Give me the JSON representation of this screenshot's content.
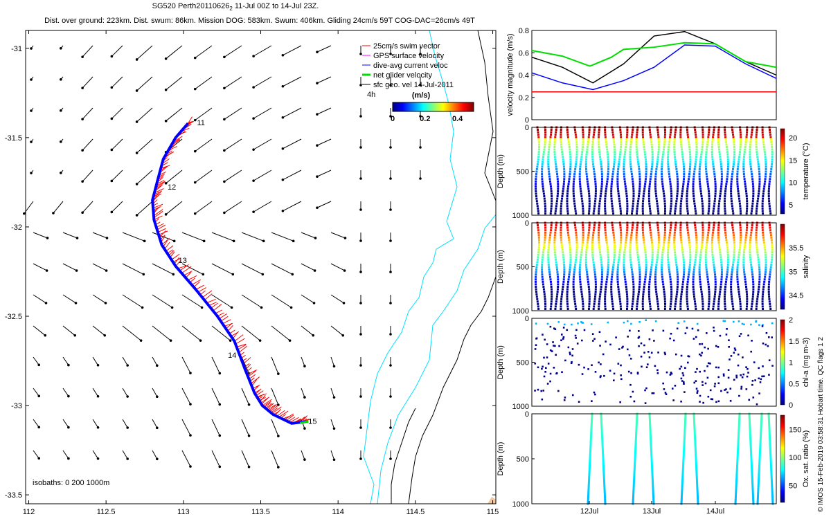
{
  "title": "SG520 Perth20110626",
  "title_sub": "2",
  "title_dates": " 11-Jul 00Z to 14-Jul 23Z.",
  "subtitle": "Dist. over ground: 223km. Dist. swum: 86km. Mission DOG: 583km. Swum: 406km. Gliding 24cm/s 59T COG-DAC=26cm/s 49T",
  "credit": "© IMOS 15-Feb-2019 03:58:31 Hobart time. QC flags 1  2",
  "chart_data": [
    {
      "type": "scatter",
      "name": "map",
      "x_ticks": [
        "112",
        "112.5",
        "113",
        "113.5",
        "114",
        "114.5",
        "115"
      ],
      "y_ticks": [
        "-31",
        "-31.5",
        "-32",
        "-32.5",
        "-33",
        "-33.5"
      ],
      "xlim": [
        111.98,
        115.02
      ],
      "ylim": [
        -33.55,
        -30.9
      ],
      "legend": {
        "placement": "top-right",
        "items": [
          {
            "label": "25cm/s swim vector",
            "color": "#ff0000"
          },
          {
            "label": "GPS surface velocity",
            "color": "#ff00ff"
          },
          {
            "label": "dive-avg current veloc",
            "color": "#0000ff"
          },
          {
            "label": "net glider velocity",
            "color": "#00dd00"
          },
          {
            "label": "sfc geo. vel 14-Jul-2011",
            "color": "#000000"
          }
        ]
      },
      "scale_label": "4h",
      "colorbar": {
        "label": "(m/s)",
        "ticks": [
          "0",
          "0.2",
          "0.4"
        ],
        "range": [
          0,
          0.5
        ]
      },
      "day_labels": [
        {
          "label": "11",
          "lon": 113.07,
          "lat": -31.42
        },
        {
          "label": "12",
          "lon": 112.88,
          "lat": -31.78
        },
        {
          "label": "13",
          "lon": 112.95,
          "lat": -32.19
        },
        {
          "label": "14",
          "lon": 113.27,
          "lat": -32.72
        },
        {
          "label": "15",
          "lon": 113.79,
          "lat": -33.09
        }
      ],
      "track": [
        [
          113.03,
          -31.42
        ],
        [
          112.95,
          -31.5
        ],
        [
          112.87,
          -31.62
        ],
        [
          112.83,
          -31.75
        ],
        [
          112.8,
          -31.85
        ],
        [
          112.81,
          -31.96
        ],
        [
          112.86,
          -32.1
        ],
        [
          112.95,
          -32.22
        ],
        [
          113.08,
          -32.35
        ],
        [
          113.22,
          -32.5
        ],
        [
          113.33,
          -32.64
        ],
        [
          113.4,
          -32.8
        ],
        [
          113.46,
          -32.93
        ],
        [
          113.51,
          -33.0
        ],
        [
          113.58,
          -33.05
        ],
        [
          113.7,
          -33.1
        ],
        [
          113.79,
          -33.09
        ]
      ],
      "isobaths_label": "isobaths: 0   200   1000m"
    },
    {
      "type": "line",
      "name": "velocity",
      "ylabel": "velocity magnitude (m/s)",
      "ylim": [
        0,
        0.8
      ],
      "y_ticks": [
        "0",
        "0.2",
        "0.4",
        "0.6",
        "0.8"
      ],
      "series": [
        {
          "color": "#000000",
          "x": [
            0,
            0.5,
            1,
            1.5,
            2,
            2.5,
            3,
            3.5,
            4
          ],
          "values": [
            0.56,
            0.47,
            0.33,
            0.5,
            0.75,
            0.79,
            0.68,
            0.52,
            0.4
          ]
        },
        {
          "color": "#0000ff",
          "x": [
            0,
            0.5,
            1,
            1.5,
            2,
            2.5,
            3,
            3.5,
            4
          ],
          "values": [
            0.42,
            0.33,
            0.27,
            0.35,
            0.47,
            0.67,
            0.66,
            0.5,
            0.37
          ]
        },
        {
          "color": "#00dd00",
          "x": [
            0,
            0.5,
            0.95,
            1.3,
            1.5,
            2,
            2.5,
            3,
            3.5,
            4
          ],
          "values": [
            0.62,
            0.57,
            0.48,
            0.56,
            0.63,
            0.65,
            0.69,
            0.68,
            0.52,
            0.47
          ]
        },
        {
          "color": "#ff0000",
          "x": [
            0,
            4
          ],
          "values": [
            0.25,
            0.25
          ]
        }
      ]
    },
    {
      "type": "scatter",
      "name": "temperature",
      "ylabel": "Depth (m)",
      "ylim": [
        1000,
        0
      ],
      "y_ticks": [
        "0",
        "500",
        "1000"
      ],
      "colorbar": {
        "label": "temperature (°C)",
        "ticks": [
          "5",
          "10",
          "15",
          "20"
        ],
        "range": [
          3,
          22
        ]
      }
    },
    {
      "type": "scatter",
      "name": "salinity",
      "ylabel": "Depth (m)",
      "ylim": [
        1000,
        0
      ],
      "y_ticks": [
        "0",
        "500",
        "1000"
      ],
      "colorbar": {
        "label": "salinity",
        "ticks": [
          "34.5",
          "35",
          "35.5"
        ],
        "range": [
          34.2,
          36
        ]
      }
    },
    {
      "type": "scatter",
      "name": "chla",
      "ylabel": "Depth (m)",
      "ylim": [
        1000,
        0
      ],
      "y_ticks": [
        "0",
        "500",
        "1000"
      ],
      "colorbar": {
        "label": "chl-a (mg m-3)",
        "ticks": [
          "0",
          "0.5",
          "1",
          "1.5",
          "2"
        ],
        "range": [
          0,
          2
        ]
      }
    },
    {
      "type": "scatter",
      "name": "oxygen",
      "ylabel": "Depth (m)",
      "ylim": [
        1000,
        0
      ],
      "y_ticks": [
        "0",
        "500",
        "1000"
      ],
      "x_ticks": [
        "12Jul",
        "13Jul",
        "14Jul"
      ],
      "colorbar": {
        "label": "Ox. sat. ratio (%)",
        "ticks": [
          "50",
          "100",
          "150"
        ],
        "range": [
          20,
          175
        ]
      }
    }
  ]
}
